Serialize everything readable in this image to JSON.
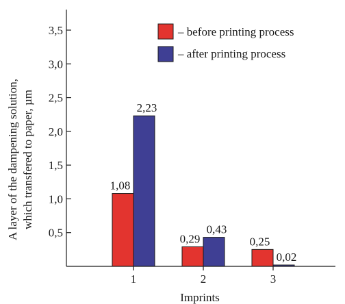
{
  "chart_data": {
    "type": "bar",
    "categories": [
      "1",
      "2",
      "3"
    ],
    "series": [
      {
        "name": "– before printing process",
        "color": "#e3342f",
        "values": [
          1.08,
          0.29,
          0.25
        ],
        "labels": [
          "1,08",
          "0,29",
          "0,25"
        ]
      },
      {
        "name": "– after printing process",
        "color": "#3f3f94",
        "values": [
          2.23,
          0.43,
          0.02
        ],
        "labels": [
          "2,23",
          "0,43",
          "0,02"
        ]
      }
    ],
    "xlabel": "Imprints",
    "ylabel_line1": "A layer of the dampening solution,",
    "ylabel_line2": "which transfered to paper, µm",
    "ylim": [
      0,
      3.5
    ],
    "yticks": [
      0.5,
      1.0,
      1.5,
      2.0,
      2.5,
      3.0,
      3.5
    ],
    "ytick_labels": [
      "0,5",
      "1,0",
      "1,5",
      "2,0",
      "2,5",
      "3,0",
      "3,5"
    ],
    "legend_position": "top-right",
    "grid": false
  }
}
